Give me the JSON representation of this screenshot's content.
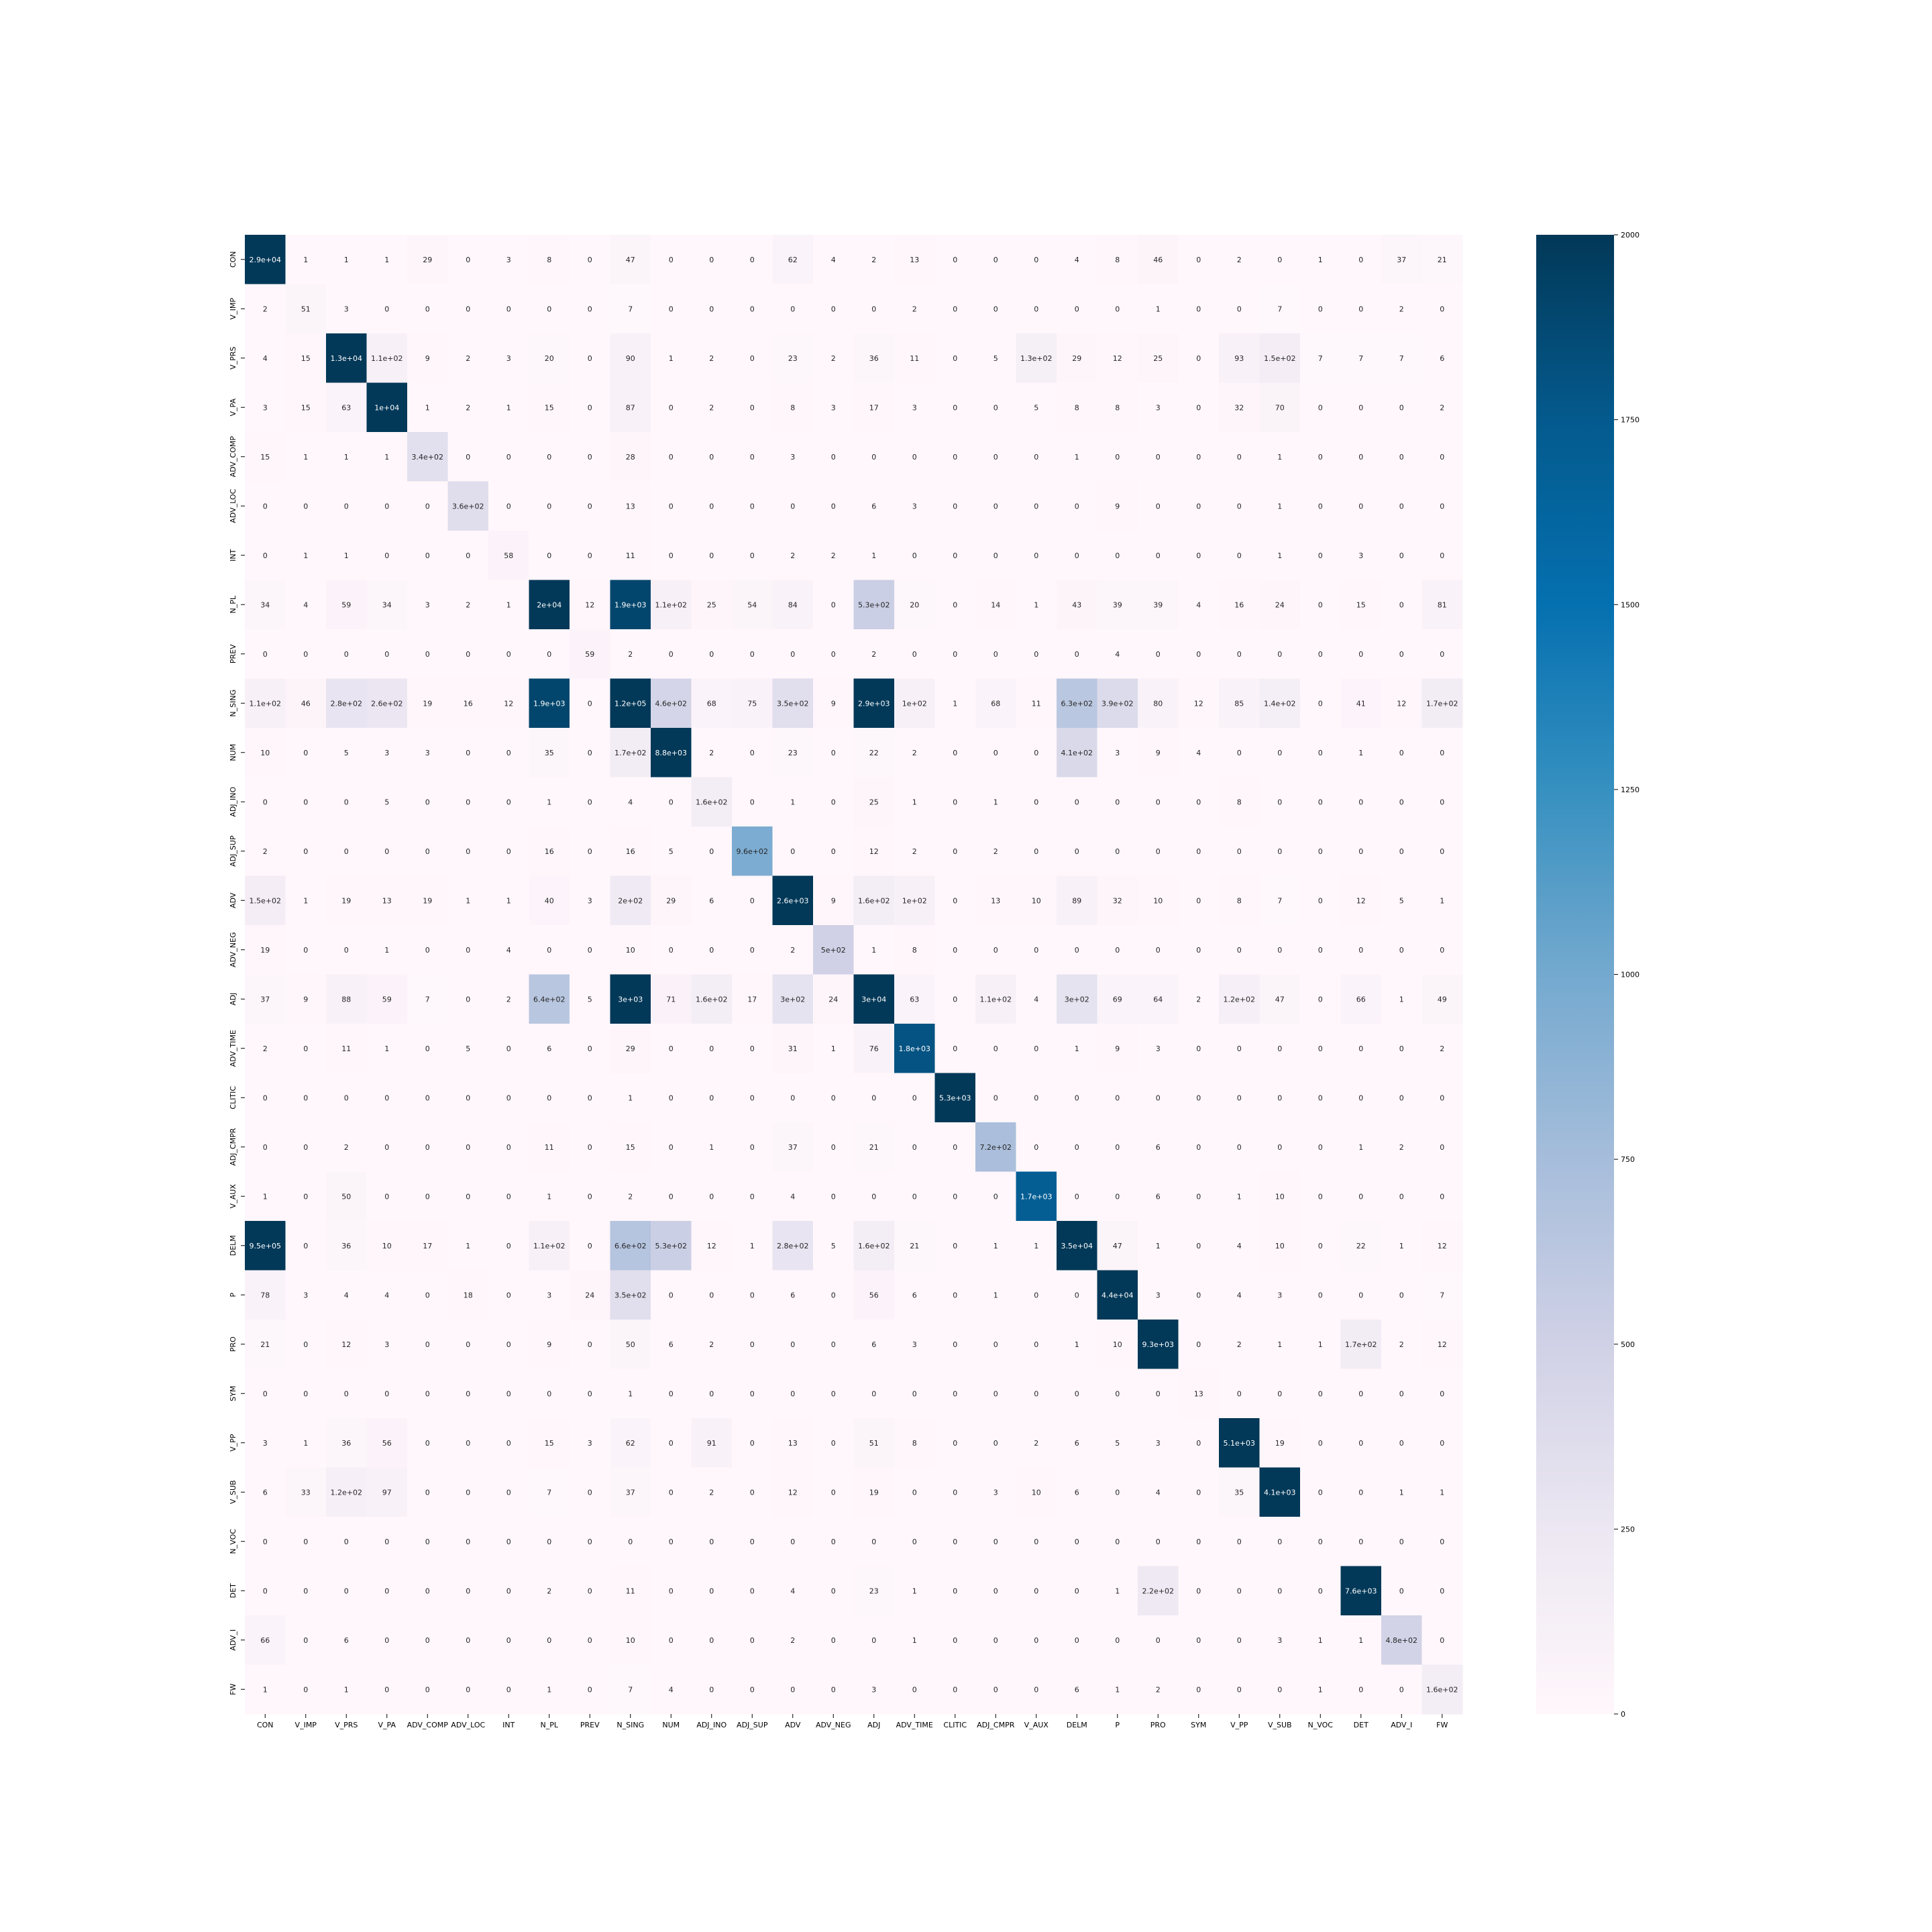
{
  "chart_data": {
    "type": "heatmap",
    "title": "",
    "xlabel": "",
    "ylabel": "",
    "colormap": "PuBu",
    "colorbar": {
      "vmin": 0,
      "vmax": 2000,
      "ticks": [
        0,
        250,
        500,
        750,
        1000,
        1250,
        1500,
        1750,
        2000
      ],
      "tick_labels": [
        "0",
        "250",
        "500",
        "750",
        "1000",
        "1250",
        "1500",
        "1750",
        "2000"
      ]
    },
    "x_labels": [
      "CON",
      "V_IMP",
      "V_PRS",
      "V_PA",
      "ADV_COMP",
      "ADV_LOC",
      "INT",
      "N_PL",
      "PREV",
      "N_SING",
      "NUM",
      "ADJ_INO",
      "ADJ_SUP",
      "ADV",
      "ADV_NEG",
      "ADJ",
      "ADV_TIME",
      "CLITIC",
      "ADJ_CMPR",
      "V_AUX",
      "DELM",
      "P",
      "PRO",
      "SYM",
      "V_PP",
      "V_SUB",
      "N_VOC",
      "DET",
      "ADV_I",
      "FW"
    ],
    "y_labels": [
      "CON",
      "V_IMP",
      "V_PRS",
      "V_PA",
      "ADV_COMP",
      "ADV_LOC",
      "INT",
      "N_PL",
      "PREV",
      "N_SING",
      "NUM",
      "ADJ_INO",
      "ADJ_SUP",
      "ADV",
      "ADV_NEG",
      "ADJ",
      "ADV_TIME",
      "CLITIC",
      "ADJ_CMPR",
      "V_AUX",
      "DELM",
      "P",
      "PRO",
      "SYM",
      "V_PP",
      "V_SUB",
      "N_VOC",
      "DET",
      "ADV_I",
      "FW"
    ],
    "cell_labels": [
      [
        "2.9e+04",
        "1",
        "1",
        "1",
        "29",
        "0",
        "3",
        "8",
        "0",
        "47",
        "0",
        "0",
        "0",
        "62",
        "4",
        "2",
        "13",
        "0",
        "0",
        "0",
        "4",
        "8",
        "46",
        "0",
        "2",
        "0",
        "1",
        "0",
        "37",
        "21"
      ],
      [
        "2",
        "51",
        "3",
        "0",
        "0",
        "0",
        "0",
        "0",
        "0",
        "7",
        "0",
        "0",
        "0",
        "0",
        "0",
        "0",
        "2",
        "0",
        "0",
        "0",
        "0",
        "0",
        "1",
        "0",
        "0",
        "7",
        "0",
        "0",
        "2",
        "0"
      ],
      [
        "4",
        "15",
        "1.3e+04",
        "1.1e+02",
        "9",
        "2",
        "3",
        "20",
        "0",
        "90",
        "1",
        "2",
        "0",
        "23",
        "2",
        "36",
        "11",
        "0",
        "5",
        "1.3e+02",
        "29",
        "12",
        "25",
        "0",
        "93",
        "1.5e+02",
        "7",
        "7",
        "7",
        "6"
      ],
      [
        "3",
        "15",
        "63",
        "1e+04",
        "1",
        "2",
        "1",
        "15",
        "0",
        "87",
        "0",
        "2",
        "0",
        "8",
        "3",
        "17",
        "3",
        "0",
        "0",
        "5",
        "8",
        "8",
        "3",
        "0",
        "32",
        "70",
        "0",
        "0",
        "0",
        "2"
      ],
      [
        "15",
        "1",
        "1",
        "1",
        "3.4e+02",
        "0",
        "0",
        "0",
        "0",
        "28",
        "0",
        "0",
        "0",
        "3",
        "0",
        "0",
        "0",
        "0",
        "0",
        "0",
        "1",
        "0",
        "0",
        "0",
        "0",
        "1",
        "0",
        "0",
        "0",
        "0"
      ],
      [
        "0",
        "0",
        "0",
        "0",
        "0",
        "3.6e+02",
        "0",
        "0",
        "0",
        "13",
        "0",
        "0",
        "0",
        "0",
        "0",
        "6",
        "3",
        "0",
        "0",
        "0",
        "0",
        "9",
        "0",
        "0",
        "0",
        "1",
        "0",
        "0",
        "0",
        "0"
      ],
      [
        "0",
        "1",
        "1",
        "0",
        "0",
        "0",
        "58",
        "0",
        "0",
        "11",
        "0",
        "0",
        "0",
        "2",
        "2",
        "1",
        "0",
        "0",
        "0",
        "0",
        "0",
        "0",
        "0",
        "0",
        "0",
        "1",
        "0",
        "3",
        "0",
        "0"
      ],
      [
        "34",
        "4",
        "59",
        "34",
        "3",
        "2",
        "1",
        "2e+04",
        "12",
        "1.9e+03",
        "1.1e+02",
        "25",
        "54",
        "84",
        "0",
        "5.3e+02",
        "20",
        "0",
        "14",
        "1",
        "43",
        "39",
        "39",
        "4",
        "16",
        "24",
        "0",
        "15",
        "0",
        "81"
      ],
      [
        "0",
        "0",
        "0",
        "0",
        "0",
        "0",
        "0",
        "0",
        "59",
        "2",
        "0",
        "0",
        "0",
        "0",
        "0",
        "2",
        "0",
        "0",
        "0",
        "0",
        "0",
        "4",
        "0",
        "0",
        "0",
        "0",
        "0",
        "0",
        "0",
        "0"
      ],
      [
        "1.1e+02",
        "46",
        "2.8e+02",
        "2.6e+02",
        "19",
        "16",
        "12",
        "1.9e+03",
        "0",
        "1.2e+05",
        "4.6e+02",
        "68",
        "75",
        "3.5e+02",
        "9",
        "2.9e+03",
        "1e+02",
        "1",
        "68",
        "11",
        "6.3e+02",
        "3.9e+02",
        "80",
        "12",
        "85",
        "1.4e+02",
        "0",
        "41",
        "12",
        "1.7e+02"
      ],
      [
        "10",
        "0",
        "5",
        "3",
        "3",
        "0",
        "0",
        "35",
        "0",
        "1.7e+02",
        "8.8e+03",
        "2",
        "0",
        "23",
        "0",
        "22",
        "2",
        "0",
        "0",
        "0",
        "4.1e+02",
        "3",
        "9",
        "4",
        "0",
        "0",
        "0",
        "1",
        "0",
        "0"
      ],
      [
        "0",
        "0",
        "0",
        "5",
        "0",
        "0",
        "0",
        "1",
        "0",
        "4",
        "0",
        "1.6e+02",
        "0",
        "1",
        "0",
        "25",
        "1",
        "0",
        "1",
        "0",
        "0",
        "0",
        "0",
        "0",
        "8",
        "0",
        "0",
        "0",
        "0",
        "0"
      ],
      [
        "2",
        "0",
        "0",
        "0",
        "0",
        "0",
        "0",
        "16",
        "0",
        "16",
        "5",
        "0",
        "9.6e+02",
        "0",
        "0",
        "12",
        "2",
        "0",
        "2",
        "0",
        "0",
        "0",
        "0",
        "0",
        "0",
        "0",
        "0",
        "0",
        "0",
        "0"
      ],
      [
        "1.5e+02",
        "1",
        "19",
        "13",
        "19",
        "1",
        "1",
        "40",
        "3",
        "2e+02",
        "29",
        "6",
        "0",
        "2.6e+03",
        "9",
        "1.6e+02",
        "1e+02",
        "0",
        "13",
        "10",
        "89",
        "32",
        "10",
        "0",
        "8",
        "7",
        "0",
        "12",
        "5",
        "1"
      ],
      [
        "19",
        "0",
        "0",
        "1",
        "0",
        "0",
        "4",
        "0",
        "0",
        "10",
        "0",
        "0",
        "0",
        "2",
        "5e+02",
        "1",
        "8",
        "0",
        "0",
        "0",
        "0",
        "0",
        "0",
        "0",
        "0",
        "0",
        "0",
        "0",
        "0",
        "0"
      ],
      [
        "37",
        "9",
        "88",
        "59",
        "7",
        "0",
        "2",
        "6.4e+02",
        "5",
        "3e+03",
        "71",
        "1.6e+02",
        "17",
        "3e+02",
        "24",
        "3e+04",
        "63",
        "0",
        "1.1e+02",
        "4",
        "3e+02",
        "69",
        "64",
        "2",
        "1.2e+02",
        "47",
        "0",
        "66",
        "1",
        "49"
      ],
      [
        "2",
        "0",
        "11",
        "1",
        "0",
        "5",
        "0",
        "6",
        "0",
        "29",
        "0",
        "0",
        "0",
        "31",
        "1",
        "76",
        "1.8e+03",
        "0",
        "0",
        "0",
        "1",
        "9",
        "3",
        "0",
        "0",
        "0",
        "0",
        "0",
        "0",
        "2"
      ],
      [
        "0",
        "0",
        "0",
        "0",
        "0",
        "0",
        "0",
        "0",
        "0",
        "1",
        "0",
        "0",
        "0",
        "0",
        "0",
        "0",
        "0",
        "5.3e+03",
        "0",
        "0",
        "0",
        "0",
        "0",
        "0",
        "0",
        "0",
        "0",
        "0",
        "0",
        "0"
      ],
      [
        "0",
        "0",
        "2",
        "0",
        "0",
        "0",
        "0",
        "11",
        "0",
        "15",
        "0",
        "1",
        "0",
        "37",
        "0",
        "21",
        "0",
        "0",
        "7.2e+02",
        "0",
        "0",
        "0",
        "6",
        "0",
        "0",
        "0",
        "0",
        "1",
        "2",
        "0"
      ],
      [
        "1",
        "0",
        "50",
        "0",
        "0",
        "0",
        "0",
        "1",
        "0",
        "2",
        "0",
        "0",
        "0",
        "4",
        "0",
        "0",
        "0",
        "0",
        "0",
        "1.7e+03",
        "0",
        "0",
        "6",
        "0",
        "1",
        "10",
        "0",
        "0",
        "0",
        "0"
      ],
      [
        "9.5e+05",
        "0",
        "36",
        "10",
        "17",
        "1",
        "0",
        "1.1e+02",
        "0",
        "6.6e+02",
        "5.3e+02",
        "12",
        "1",
        "2.8e+02",
        "5",
        "1.6e+02",
        "21",
        "0",
        "1",
        "1",
        "3.5e+04",
        "47",
        "1",
        "0",
        "4",
        "10",
        "0",
        "22",
        "1",
        "12"
      ],
      [
        "78",
        "3",
        "4",
        "4",
        "0",
        "18",
        "0",
        "3",
        "24",
        "3.5e+02",
        "0",
        "0",
        "0",
        "6",
        "0",
        "56",
        "6",
        "0",
        "1",
        "0",
        "0",
        "4.4e+04",
        "3",
        "0",
        "4",
        "3",
        "0",
        "0",
        "0",
        "7"
      ],
      [
        "21",
        "0",
        "12",
        "3",
        "0",
        "0",
        "0",
        "9",
        "0",
        "50",
        "6",
        "2",
        "0",
        "0",
        "0",
        "6",
        "3",
        "0",
        "0",
        "0",
        "1",
        "10",
        "9.3e+03",
        "0",
        "2",
        "1",
        "1",
        "1.7e+02",
        "2",
        "12"
      ],
      [
        "0",
        "0",
        "0",
        "0",
        "0",
        "0",
        "0",
        "0",
        "0",
        "1",
        "0",
        "0",
        "0",
        "0",
        "0",
        "0",
        "0",
        "0",
        "0",
        "0",
        "0",
        "0",
        "0",
        "13",
        "0",
        "0",
        "0",
        "0",
        "0",
        "0"
      ],
      [
        "3",
        "1",
        "36",
        "56",
        "0",
        "0",
        "0",
        "15",
        "3",
        "62",
        "0",
        "91",
        "0",
        "13",
        "0",
        "51",
        "8",
        "0",
        "0",
        "2",
        "6",
        "5",
        "3",
        "0",
        "5.1e+03",
        "19",
        "0",
        "0",
        "0",
        "0"
      ],
      [
        "6",
        "33",
        "1.2e+02",
        "97",
        "0",
        "0",
        "0",
        "7",
        "0",
        "37",
        "0",
        "2",
        "0",
        "12",
        "0",
        "19",
        "0",
        "0",
        "3",
        "10",
        "6",
        "0",
        "4",
        "0",
        "35",
        "4.1e+03",
        "0",
        "0",
        "1",
        "1"
      ],
      [
        "0",
        "0",
        "0",
        "0",
        "0",
        "0",
        "0",
        "0",
        "0",
        "0",
        "0",
        "0",
        "0",
        "0",
        "0",
        "0",
        "0",
        "0",
        "0",
        "0",
        "0",
        "0",
        "0",
        "0",
        "0",
        "0",
        "0",
        "0",
        "0",
        "0"
      ],
      [
        "0",
        "0",
        "0",
        "0",
        "0",
        "0",
        "0",
        "2",
        "0",
        "11",
        "0",
        "0",
        "0",
        "4",
        "0",
        "23",
        "1",
        "0",
        "0",
        "0",
        "0",
        "1",
        "2.2e+02",
        "0",
        "0",
        "0",
        "0",
        "7.6e+03",
        "0",
        "0"
      ],
      [
        "66",
        "0",
        "6",
        "0",
        "0",
        "0",
        "0",
        "0",
        "0",
        "10",
        "0",
        "0",
        "0",
        "2",
        "0",
        "0",
        "1",
        "0",
        "0",
        "0",
        "0",
        "0",
        "0",
        "0",
        "0",
        "3",
        "1",
        "1",
        "4.8e+02",
        "0"
      ],
      [
        "1",
        "0",
        "1",
        "0",
        "0",
        "0",
        "0",
        "1",
        "0",
        "7",
        "4",
        "0",
        "0",
        "0",
        "0",
        "3",
        "0",
        "0",
        "0",
        "0",
        "6",
        "1",
        "2",
        "0",
        "0",
        "0",
        "1",
        "0",
        "0",
        "1.6e+02"
      ]
    ]
  }
}
